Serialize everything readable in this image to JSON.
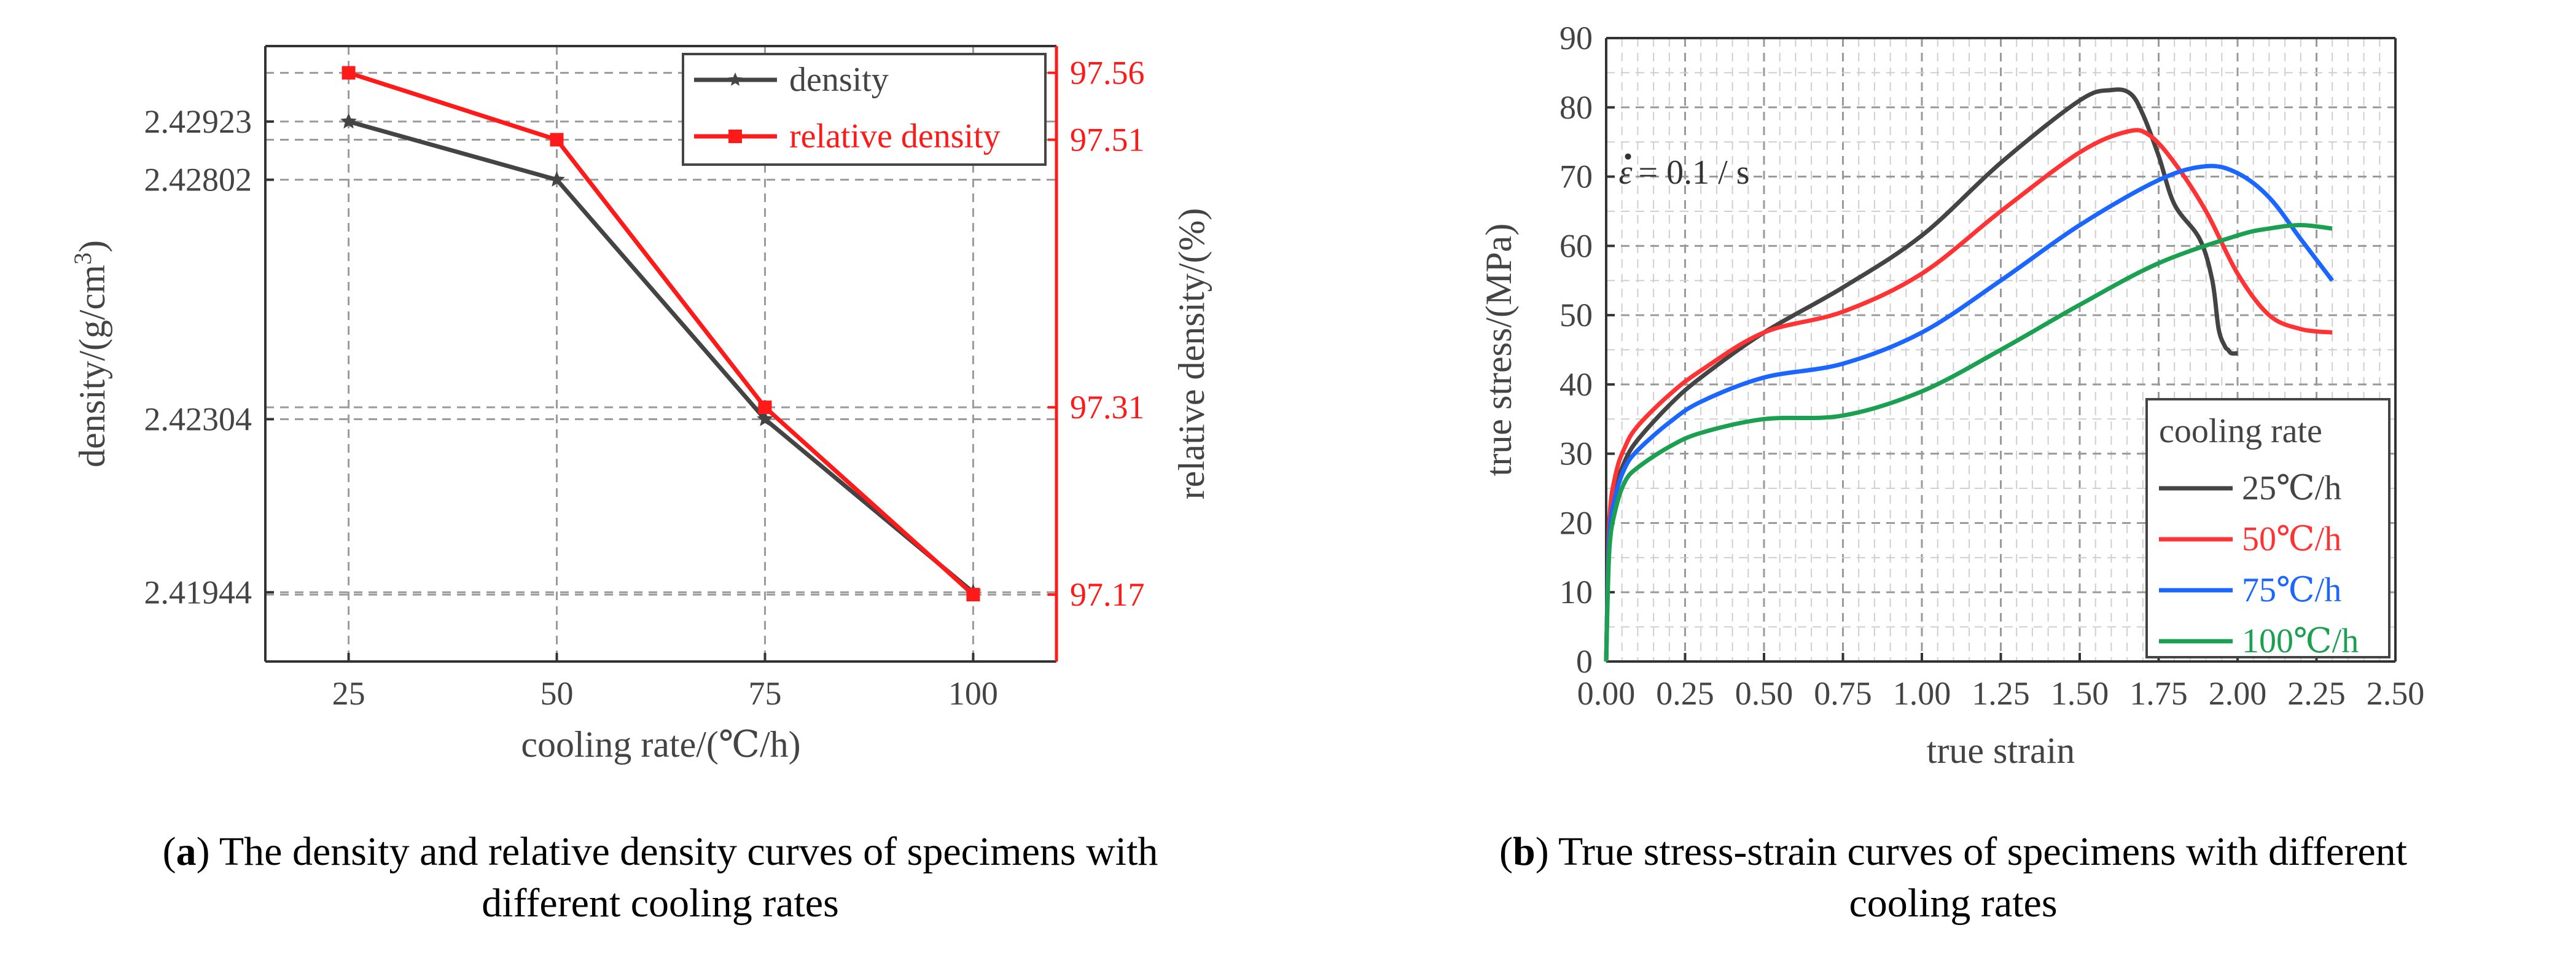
{
  "chart_data": [
    {
      "type": "line",
      "panel": "a",
      "xlabel": "cooling rate/(℃/h)",
      "ylabel_left": "density/(g/cm",
      "ylabel_left_sup": "3",
      "ylabel_left_end": ")",
      "ylabel_right": "relative density/(%)",
      "x": [
        25,
        50,
        75,
        100
      ],
      "x_ticks": [
        "25",
        "50",
        "75",
        "100"
      ],
      "xlim": [
        15,
        110
      ],
      "ylim_left": [
        2.418,
        2.4308
      ],
      "ylim_right": [
        97.12,
        97.58
      ],
      "left_ticks": [
        "2.42923",
        "2.42802",
        "2.42304",
        "2.41944"
      ],
      "right_ticks": [
        "97.56",
        "97.51",
        "97.31",
        "97.17"
      ],
      "series": [
        {
          "name": "density",
          "axis": "left",
          "marker": "star",
          "color": "#444444",
          "values": [
            2.42923,
            2.42802,
            2.42304,
            2.41944
          ]
        },
        {
          "name": "relative density",
          "axis": "right",
          "marker": "square",
          "color": "#ff1a1a",
          "values": [
            97.56,
            97.51,
            97.31,
            97.17
          ]
        }
      ],
      "caption_label": "a",
      "caption_line1": ") The density and relative density curves of specimens with",
      "caption_line2": "different cooling rates"
    },
    {
      "type": "line",
      "panel": "b",
      "xlabel": "true strain",
      "ylabel": "true stress/(MPa)",
      "xlim": [
        0,
        2.5
      ],
      "ylim": [
        0,
        90
      ],
      "x_ticks": [
        "0.00",
        "0.25",
        "0.50",
        "0.75",
        "1.00",
        "1.25",
        "1.50",
        "1.75",
        "2.00",
        "2.25",
        "2.50"
      ],
      "y_ticks": [
        "0",
        "10",
        "20",
        "30",
        "40",
        "50",
        "60",
        "70",
        "80",
        "90"
      ],
      "annotation_eps": "ε",
      "annotation_text": " = 0.1 / s",
      "legend_title": "cooling rate",
      "series": [
        {
          "name": "25℃/h",
          "color": "#444444",
          "x": [
            0,
            0.01,
            0.03,
            0.06,
            0.1,
            0.2,
            0.3,
            0.5,
            0.75,
            1.0,
            1.25,
            1.5,
            1.6,
            1.66,
            1.7,
            1.75,
            1.8,
            1.88,
            1.92,
            1.94,
            1.96,
            1.97,
            1.98,
            2.0
          ],
          "values": [
            0,
            19,
            25,
            29,
            32,
            37,
            41,
            47.5,
            54,
            61.5,
            72,
            81,
            82.5,
            82,
            79,
            73,
            66,
            61,
            55,
            48,
            45.5,
            45,
            44.5,
            44.5
          ]
        },
        {
          "name": "50℃/h",
          "color": "#ff3333",
          "x": [
            0,
            0.01,
            0.03,
            0.06,
            0.1,
            0.2,
            0.3,
            0.5,
            0.75,
            1.0,
            1.25,
            1.5,
            1.65,
            1.72,
            1.8,
            1.9,
            2.0,
            2.1,
            2.2,
            2.3
          ],
          "values": [
            0,
            20,
            27,
            31,
            34,
            38.5,
            42,
            47.5,
            50.5,
            56,
            65,
            73.5,
            76.5,
            76,
            72,
            65,
            56,
            50,
            48,
            47.5
          ]
        },
        {
          "name": "75℃/h",
          "color": "#1a66ff",
          "x": [
            0,
            0.01,
            0.03,
            0.06,
            0.1,
            0.2,
            0.3,
            0.5,
            0.75,
            1.0,
            1.25,
            1.5,
            1.75,
            1.9,
            2.0,
            2.1,
            2.2,
            2.3
          ],
          "values": [
            0,
            18,
            24,
            28,
            30.5,
            34.5,
            37.5,
            41,
            43,
            47.5,
            55,
            63,
            69.5,
            71.5,
            70.5,
            67,
            61,
            55
          ]
        },
        {
          "name": "100℃/h",
          "color": "#1aa050",
          "x": [
            0,
            0.01,
            0.03,
            0.06,
            0.1,
            0.2,
            0.3,
            0.5,
            0.75,
            1.0,
            1.25,
            1.5,
            1.75,
            2.0,
            2.1,
            2.2,
            2.3
          ],
          "values": [
            0,
            16,
            22,
            26,
            28,
            31,
            33,
            35,
            35.5,
            39,
            45,
            51.5,
            57.5,
            61.5,
            62.5,
            63,
            62.5
          ]
        }
      ],
      "caption_label": "b",
      "caption_line1": ") True stress-strain curves of specimens with different",
      "caption_line2": "cooling rates"
    }
  ]
}
